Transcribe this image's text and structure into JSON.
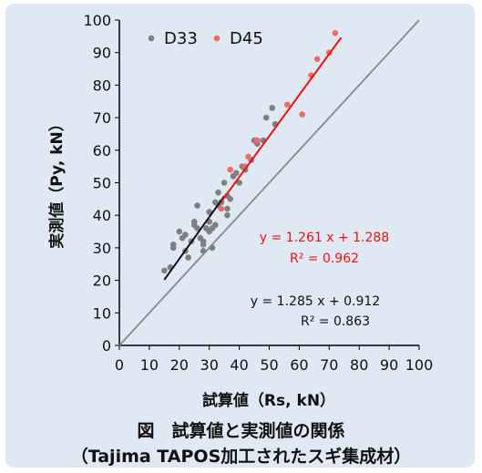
{
  "chart_data": {
    "type": "scatter",
    "title": "",
    "xlabel": "試算値（Rs, kN）",
    "ylabel": "実測値（Py, kN）",
    "xlim": [
      0,
      100
    ],
    "ylim": [
      0,
      100
    ],
    "x_ticks": [
      0,
      10,
      20,
      30,
      40,
      50,
      60,
      70,
      80,
      90,
      100
    ],
    "y_ticks": [
      0,
      10,
      20,
      30,
      40,
      50,
      60,
      70,
      80,
      90,
      100
    ],
    "grid": false,
    "legend_position": "top-left",
    "reference_line": {
      "slope": 1,
      "intercept": 0,
      "color": "#888888"
    },
    "series": [
      {
        "name": "D33",
        "color": "#7f7f7f",
        "points": [
          [
            15,
            23
          ],
          [
            17,
            24
          ],
          [
            18,
            30
          ],
          [
            18,
            31
          ],
          [
            20,
            35
          ],
          [
            21,
            33
          ],
          [
            22,
            34
          ],
          [
            22,
            29
          ],
          [
            23,
            27
          ],
          [
            24,
            32
          ],
          [
            25,
            37
          ],
          [
            25,
            38
          ],
          [
            26,
            36
          ],
          [
            26,
            43
          ],
          [
            27,
            33
          ],
          [
            28,
            31
          ],
          [
            28,
            29
          ],
          [
            28,
            32
          ],
          [
            29,
            36
          ],
          [
            30,
            38
          ],
          [
            30,
            35
          ],
          [
            30,
            41
          ],
          [
            31,
            30
          ],
          [
            31,
            36
          ],
          [
            32,
            37
          ],
          [
            32,
            44
          ],
          [
            33,
            43
          ],
          [
            33,
            47
          ],
          [
            34,
            44
          ],
          [
            35,
            50
          ],
          [
            36,
            40
          ],
          [
            36,
            42
          ],
          [
            36,
            46
          ],
          [
            37,
            45
          ],
          [
            38,
            52
          ],
          [
            39,
            53
          ],
          [
            40,
            50
          ],
          [
            41,
            55
          ],
          [
            42,
            54
          ],
          [
            44,
            57
          ],
          [
            45,
            63
          ],
          [
            46,
            62
          ],
          [
            48,
            63
          ],
          [
            49,
            70
          ],
          [
            51,
            73
          ],
          [
            52,
            68
          ]
        ],
        "fit": {
          "label": "y = 1.285 x + 0.912",
          "r2_label": "R² = 0.863",
          "slope": 1.285,
          "intercept": 0.912,
          "x_range": [
            15,
            35
          ],
          "color": "#111111"
        }
      },
      {
        "name": "D45",
        "color": "#f26b6b",
        "points": [
          [
            34,
            42
          ],
          [
            37,
            54
          ],
          [
            42,
            55
          ],
          [
            43,
            58
          ],
          [
            46,
            63
          ],
          [
            56,
            74
          ],
          [
            61,
            71
          ],
          [
            64,
            83
          ],
          [
            66,
            88
          ],
          [
            70,
            90
          ],
          [
            72,
            96
          ]
        ],
        "fit": {
          "label": "y = 1.261 x + 1.288",
          "r2_label": "R² = 0.962",
          "slope": 1.261,
          "intercept": 1.288,
          "x_range": [
            34,
            74
          ],
          "color": "#ee1111"
        }
      }
    ]
  },
  "caption": {
    "line1": "図　試算値と実測値の関係",
    "line2": "（Tajima TAPOS加工されたスギ集成材）"
  }
}
